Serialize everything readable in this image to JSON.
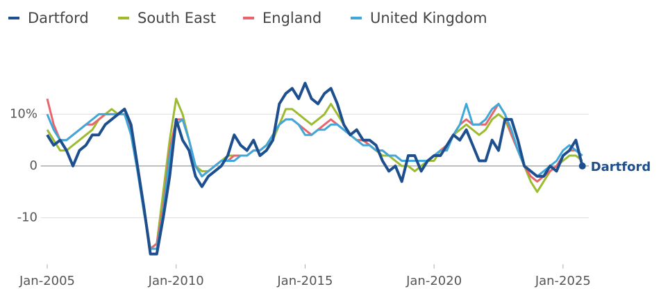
{
  "chart_data": {
    "type": "line",
    "x": [
      "2005-01",
      "2005-04",
      "2005-07",
      "2005-10",
      "2006-01",
      "2006-04",
      "2006-07",
      "2006-10",
      "2007-01",
      "2007-04",
      "2007-07",
      "2007-10",
      "2008-01",
      "2008-04",
      "2008-07",
      "2008-10",
      "2009-01",
      "2009-04",
      "2009-07",
      "2009-10",
      "2010-01",
      "2010-04",
      "2010-07",
      "2010-10",
      "2011-01",
      "2011-04",
      "2011-07",
      "2011-10",
      "2012-01",
      "2012-04",
      "2012-07",
      "2012-10",
      "2013-01",
      "2013-04",
      "2013-07",
      "2013-10",
      "2014-01",
      "2014-04",
      "2014-07",
      "2014-10",
      "2015-01",
      "2015-04",
      "2015-07",
      "2015-10",
      "2016-01",
      "2016-04",
      "2016-07",
      "2016-10",
      "2017-01",
      "2017-04",
      "2017-07",
      "2017-10",
      "2018-01",
      "2018-04",
      "2018-07",
      "2018-10",
      "2019-01",
      "2019-04",
      "2019-07",
      "2019-10",
      "2020-01",
      "2020-04",
      "2020-07",
      "2020-10",
      "2021-01",
      "2021-04",
      "2021-07",
      "2021-10",
      "2022-01",
      "2022-04",
      "2022-07",
      "2022-10",
      "2023-01",
      "2023-04",
      "2023-07",
      "2023-10",
      "2024-01",
      "2024-04",
      "2024-07",
      "2024-10",
      "2025-01",
      "2025-04",
      "2025-07",
      "2025-10"
    ],
    "series": [
      {
        "name": "Dartford",
        "color": "#1d4f8f",
        "values": [
          6,
          4,
          5,
          3,
          0,
          3,
          4,
          6,
          6,
          8,
          9,
          10,
          11,
          8,
          0,
          -8,
          -17,
          -17,
          -10,
          -2,
          9,
          5,
          3,
          -2,
          -4,
          -2,
          -1,
          0,
          2,
          6,
          4,
          3,
          5,
          2,
          3,
          5,
          12,
          14,
          15,
          13,
          16,
          13,
          12,
          14,
          15,
          12,
          8,
          6,
          7,
          5,
          5,
          4,
          1,
          -1,
          0,
          -3,
          2,
          2,
          -1,
          1,
          2,
          2,
          4,
          6,
          5,
          7,
          4,
          1,
          1,
          5,
          3,
          9,
          9,
          5,
          0,
          -1,
          -2,
          -2,
          0,
          -1,
          2,
          3,
          5,
          0
        ]
      },
      {
        "name": "South East",
        "color": "#9cbb2f",
        "values": [
          7,
          5,
          3,
          3,
          4,
          5,
          6,
          7,
          9,
          10,
          11,
          10,
          10,
          7,
          0,
          -8,
          -16,
          -15,
          -5,
          5,
          13,
          10,
          5,
          0,
          -1,
          -1,
          0,
          1,
          2,
          2,
          2,
          2,
          3,
          3,
          4,
          5,
          8,
          11,
          11,
          10,
          9,
          8,
          9,
          10,
          12,
          10,
          8,
          6,
          5,
          5,
          4,
          3,
          2,
          2,
          1,
          0,
          0,
          -1,
          0,
          1,
          1,
          3,
          4,
          6,
          7,
          8,
          7,
          6,
          7,
          9,
          10,
          9,
          6,
          3,
          0,
          -3,
          -5,
          -3,
          -1,
          0,
          1,
          2,
          2,
          1
        ]
      },
      {
        "name": "England",
        "color": "#e9646c",
        "values": [
          13,
          8,
          5,
          5,
          6,
          7,
          8,
          8,
          9,
          10,
          10,
          10,
          10,
          7,
          0,
          -8,
          -16,
          -15,
          -8,
          3,
          9,
          9,
          5,
          0,
          -2,
          -1,
          0,
          1,
          1,
          2,
          2,
          2,
          3,
          3,
          4,
          6,
          8,
          9,
          9,
          8,
          7,
          6,
          7,
          8,
          9,
          8,
          7,
          6,
          5,
          5,
          4,
          3,
          3,
          2,
          2,
          1,
          1,
          1,
          1,
          1,
          2,
          3,
          4,
          6,
          8,
          9,
          8,
          8,
          8,
          10,
          12,
          10,
          6,
          3,
          0,
          -2,
          -3,
          -2,
          -1,
          0,
          2,
          3,
          3,
          2
        ]
      },
      {
        "name": "United Kingdom",
        "color": "#3fa8d8",
        "values": [
          10,
          7,
          5,
          5,
          6,
          7,
          8,
          9,
          10,
          10,
          10,
          10,
          10,
          6,
          -1,
          -9,
          -16,
          -16,
          -9,
          2,
          8,
          9,
          5,
          0,
          -2,
          -1,
          0,
          1,
          1,
          1,
          2,
          2,
          3,
          3,
          4,
          6,
          8,
          9,
          9,
          8,
          6,
          6,
          7,
          7,
          8,
          8,
          7,
          6,
          5,
          4,
          4,
          3,
          3,
          2,
          2,
          1,
          1,
          1,
          1,
          1,
          2,
          3,
          3,
          6,
          8,
          12,
          8,
          8,
          9,
          11,
          12,
          10,
          7,
          3,
          0,
          -1,
          -2,
          -1,
          0,
          1,
          3,
          4,
          3,
          2
        ]
      }
    ],
    "xlim": [
      "2004-10",
      "2026-01"
    ],
    "xticks": [
      {
        "value": "2005-01",
        "label": "Jan-2005"
      },
      {
        "value": "2010-01",
        "label": "Jan-2010"
      },
      {
        "value": "2015-01",
        "label": "Jan-2015"
      },
      {
        "value": "2020-01",
        "label": "Jan-2020"
      },
      {
        "value": "2025-01",
        "label": "Jan-2025"
      }
    ],
    "ylim": [
      -19,
      16.5
    ],
    "yticks": [
      {
        "value": 10,
        "label": "10%"
      },
      0,
      -10
    ],
    "grid": true,
    "legend": "top-left"
  }
}
